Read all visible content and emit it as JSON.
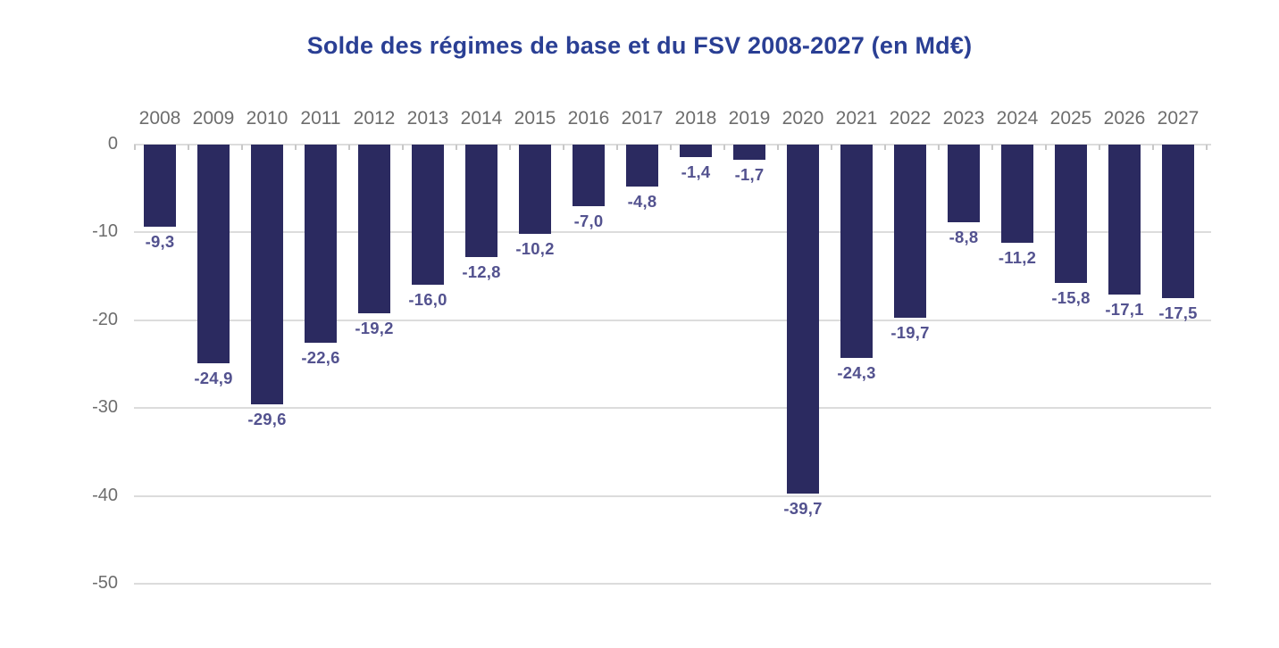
{
  "title": "Solde des régimes de base et du FSV 2008-2027 (en Md€)",
  "chart_data": {
    "type": "bar",
    "title": "Solde des régimes de base et du FSV 2008-2027 (en Md€)",
    "categories": [
      "2008",
      "2009",
      "2010",
      "2011",
      "2012",
      "2013",
      "2014",
      "2015",
      "2016",
      "2017",
      "2018",
      "2019",
      "2020",
      "2021",
      "2022",
      "2023",
      "2024",
      "2025",
      "2026",
      "2027"
    ],
    "values": [
      -9.3,
      -24.9,
      -29.6,
      -22.6,
      -19.2,
      -16.0,
      -12.8,
      -10.2,
      -7.0,
      -4.8,
      -1.4,
      -1.7,
      -39.7,
      -24.3,
      -19.7,
      -8.8,
      -11.2,
      -15.8,
      -17.1,
      -17.5
    ],
    "value_labels": [
      "-9,3",
      "-24,9",
      "-29,6",
      "-22,6",
      "-19,2",
      "-16,0",
      "-12,8",
      "-10,2",
      "-7,0",
      "-4,8",
      "-1,4",
      "-1,7",
      "-39,7",
      "-24,3",
      "-19,7",
      "-8,8",
      "-11,2",
      "-15,8",
      "-17,1",
      "-17,5"
    ],
    "xlabel": "",
    "ylabel": "",
    "ylim": [
      -50,
      0
    ],
    "yticks": [
      0,
      -10,
      -20,
      -30,
      -40,
      -50
    ],
    "ytick_labels": [
      "0",
      "-10",
      "-20",
      "-30",
      "-40",
      "-50"
    ],
    "grid": true,
    "legend": "none",
    "category_axis_position": "top",
    "colors": {
      "bar": "#2b2a60",
      "value_label": "#53528f",
      "axis_text": "#6d6d6d",
      "gridline": "#dcdcdc",
      "tick": "#c8c8c8",
      "title": "#2a3f94"
    }
  }
}
